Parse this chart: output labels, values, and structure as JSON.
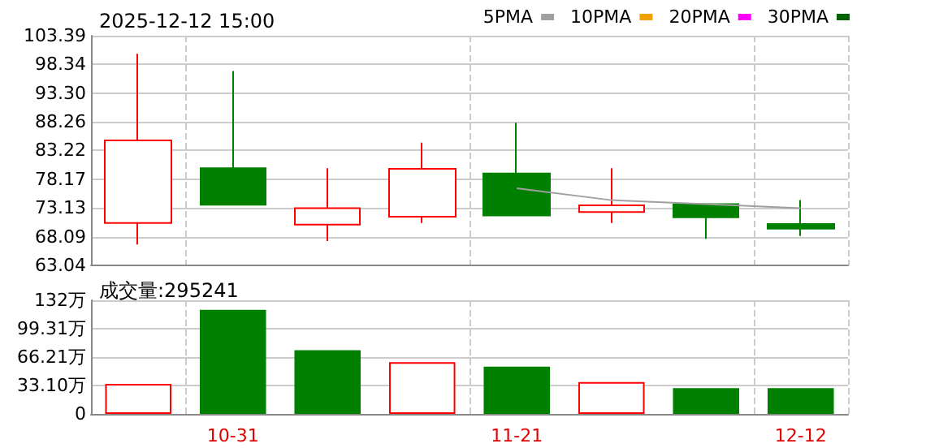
{
  "chart_data": [
    {
      "type": "candlestick",
      "title": "2025-12-12 15:00",
      "categories": [
        null,
        null,
        null,
        null,
        null,
        null,
        null,
        null
      ],
      "ohlc": [
        [
          70.5,
          100.2,
          66.7,
          85.0
        ],
        [
          80.1,
          97.2,
          73.7,
          73.7
        ],
        [
          70.2,
          80.1,
          67.3,
          73.1
        ],
        [
          71.6,
          84.6,
          70.5,
          80.0
        ],
        [
          79.2,
          88.1,
          71.8,
          71.8
        ],
        [
          72.4,
          80.1,
          70.5,
          73.6
        ],
        [
          73.8,
          73.8,
          67.7,
          71.5
        ],
        [
          70.3,
          74.5,
          68.2,
          69.5
        ]
      ],
      "colors": [
        "#ff0000",
        "#008000",
        "#ff0000",
        "#ff0000",
        "#008000",
        "#ff0000",
        "#008000",
        "#008000"
      ],
      "series": [
        {
          "type": "line",
          "name": "5PMA",
          "color": "#a0a0a0",
          "values": [
            null,
            null,
            null,
            null,
            76.6,
            74.5,
            73.8,
            73.1
          ]
        },
        {
          "type": "line",
          "name": "10PMA",
          "color": "#f0a000",
          "values": [
            null,
            null,
            null,
            null,
            null,
            null,
            null,
            null
          ]
        },
        {
          "type": "line",
          "name": "20PMA",
          "color": "#ff00ff",
          "values": [
            null,
            null,
            null,
            null,
            null,
            null,
            null,
            null
          ]
        },
        {
          "type": "line",
          "name": "30PMA",
          "color": "#006400",
          "values": [
            null,
            null,
            null,
            null,
            null,
            null,
            null,
            null
          ]
        }
      ],
      "ylim": [
        63.04,
        103.39
      ],
      "yticks": [
        63.04,
        68.09,
        73.13,
        78.17,
        83.22,
        88.26,
        {
          "value": 93.3,
          "label": "93.30"
        },
        98.34,
        103.39
      ],
      "grid": true,
      "legend": "top right",
      "marker": "none",
      "tick_labels": "y"
    },
    {
      "type": "bar",
      "title": "成交量:295241",
      "categories": [
        null,
        "10-31",
        null,
        null,
        "11-21",
        null,
        null,
        "12-12"
      ],
      "values": [
        35,
        121,
        74,
        60,
        55,
        37,
        30,
        30
      ],
      "colors": [
        "#ff0000",
        "#008000",
        "#008000",
        "#ff0000",
        "#008000",
        "#ff0000",
        "#008000",
        "#008000"
      ],
      "ylim": [
        0,
        132
      ],
      "yticks": [
        0,
        {
          "value": 33.1,
          "label": "33.10万"
        },
        {
          "value": 66.21,
          "label": "66.21万"
        },
        {
          "value": 99.31,
          "label": "99.31万"
        },
        {
          "value": 132,
          "label": "132万"
        }
      ],
      "grid": true
    }
  ]
}
